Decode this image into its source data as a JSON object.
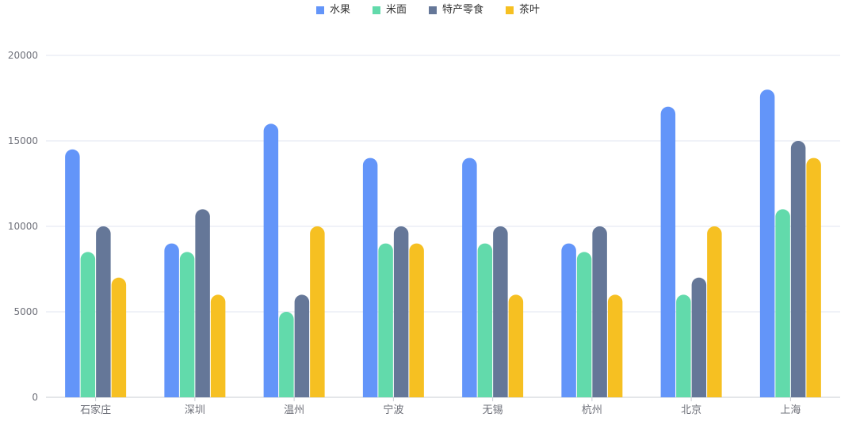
{
  "chart_data": {
    "type": "bar",
    "categories": [
      "石家庄",
      "深圳",
      "温州",
      "宁波",
      "无锡",
      "杭州",
      "北京",
      "上海"
    ],
    "series": [
      {
        "name": "水果",
        "color": "#6395f9",
        "values": [
          14500,
          9000,
          16000,
          14000,
          14000,
          9000,
          17000,
          18000
        ]
      },
      {
        "name": "米面",
        "color": "#62daab",
        "values": [
          8500,
          8500,
          5000,
          9000,
          9000,
          8500,
          6000,
          11000
        ]
      },
      {
        "name": "特产零食",
        "color": "#657798",
        "values": [
          10000,
          11000,
          6000,
          10000,
          10000,
          10000,
          7000,
          15000
        ]
      },
      {
        "name": "茶叶",
        "color": "#f6c022",
        "values": [
          7000,
          6000,
          10000,
          9000,
          6000,
          6000,
          10000,
          14000
        ]
      }
    ],
    "yticks": [
      0,
      5000,
      10000,
      15000,
      20000
    ],
    "ylim": [
      0,
      20000
    ],
    "grid": true,
    "legend_position": "top-center",
    "title": "",
    "xlabel": "",
    "ylabel": ""
  }
}
